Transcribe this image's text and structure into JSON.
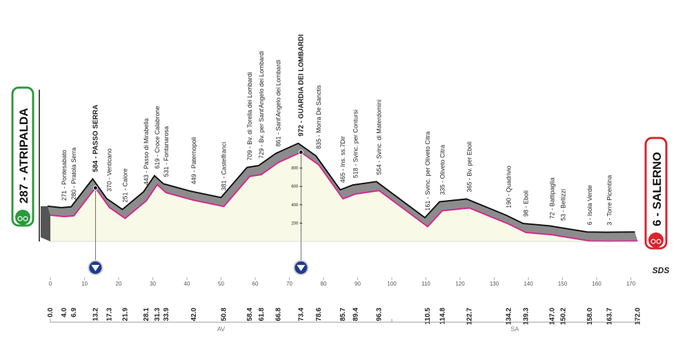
{
  "chart_data": {
    "type": "elevation-profile",
    "x": [
      {
        "value": 0,
        "label": "0.0"
      },
      {
        "value": 4,
        "label": "4.0"
      },
      {
        "value": 6.9,
        "label": "6.9"
      },
      {
        "value": 13.2,
        "label": "13.2"
      },
      {
        "value": 17.3,
        "label": "17.3"
      },
      {
        "value": 21.9,
        "label": "21.9"
      },
      {
        "value": 28.1,
        "label": "28.1"
      },
      {
        "value": 31.3,
        "label": "31.3"
      },
      {
        "value": 33.9,
        "label": "33.9"
      },
      {
        "value": 42,
        "label": "42.0"
      },
      {
        "value": 50.8,
        "label": "50.8"
      },
      {
        "value": 58.4,
        "label": "58.4"
      },
      {
        "value": 61.8,
        "label": "61.8"
      },
      {
        "value": 66.8,
        "label": "66.8"
      },
      {
        "value": 73.4,
        "label": "73.4"
      },
      {
        "value": 78.6,
        "label": "78.6"
      },
      {
        "value": 85.7,
        "label": "85.7"
      },
      {
        "value": 89.4,
        "label": "89.4"
      },
      {
        "value": 96.3,
        "label": "96.3"
      },
      {
        "value": 110.5,
        "label": "110.5"
      },
      {
        "value": 114.8,
        "label": "114.8"
      },
      {
        "value": 122.7,
        "label": "122.7"
      },
      {
        "value": 134.2,
        "label": "134.2"
      },
      {
        "value": 139.3,
        "label": "139.3"
      },
      {
        "value": 147,
        "label": "147.0"
      },
      {
        "value": 150.2,
        "label": "150.2"
      },
      {
        "value": 158,
        "label": "158.0"
      },
      {
        "value": 163.7,
        "label": "163.7"
      },
      {
        "value": 172,
        "label": "172.0"
      }
    ],
    "values": [
      287,
      271,
      280,
      584,
      370,
      251,
      443,
      619,
      531,
      449,
      381,
      709,
      729,
      861,
      972,
      835,
      465,
      518,
      554,
      161,
      335,
      365,
      190,
      98,
      72,
      53,
      6,
      3,
      6
    ],
    "value_labels": [
      "287 - ATRIPALDA",
      "271 - Pontesabato",
      "280 - Pratola Serra",
      "584 - PASSO SERRA",
      "370 - Venticano",
      "251 - Calore",
      "443 - Passo di Mirabella",
      "619 - Croce Calabrone",
      "531 - Fontanarosa",
      "449 - Paternopoli",
      "381 - Castelfranci",
      "709 - Bv. di Torella dei Lombardi",
      "729 - Bv. per Sant'Angelo dei Lombardi",
      "861 - Sant'Angelo dei Lombardi",
      "972 - GUARDIA DEI LOMBARDI",
      "835 - Morra De Sanctis",
      "465 - Ins. ss.7Dir",
      "518 - Svinc. per Contursi",
      "554 - Svinc. di Materdomini",
      "161 - Svinc. per Oliveto Citra",
      "335 - Oliveto Citra",
      "365 - Bv. per Eboli",
      "190 - Quadrivio",
      "98 - Eboli",
      "72 - Battipaglia",
      "53 - Bellizzi",
      "6 - Isola Verde",
      "3 - Torre Picentina",
      "6 - SALERNO"
    ],
    "xlim": [
      0,
      172
    ],
    "xticks": [
      0,
      10,
      20,
      30,
      40,
      50,
      60,
      70,
      80,
      90,
      100,
      110,
      120,
      130,
      140,
      150,
      160,
      170
    ],
    "ylim": [
      0,
      1000
    ],
    "yticks": [
      200,
      400,
      600,
      800
    ],
    "regions": [
      {
        "label": "AV",
        "from": 0,
        "to": 100
      },
      {
        "label": "SA",
        "from": 100,
        "to": 172
      }
    ],
    "logo": "SDS",
    "colors": {
      "profile": "#d6278f",
      "relief": "#8c8c8c",
      "fill": "#f8f9e6",
      "start": "#2a9a3c",
      "finish": "#d9232d",
      "summit": "#1d3b8f"
    }
  }
}
